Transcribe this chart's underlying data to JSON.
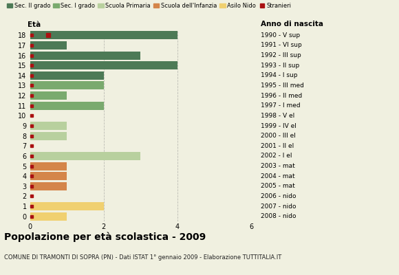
{
  "ages": [
    18,
    17,
    16,
    15,
    14,
    13,
    12,
    11,
    10,
    9,
    8,
    7,
    6,
    5,
    4,
    3,
    2,
    1,
    0
  ],
  "anni_nascita": [
    "1990 - V sup",
    "1991 - VI sup",
    "1992 - III sup",
    "1993 - II sup",
    "1994 - I sup",
    "1995 - III med",
    "1996 - II med",
    "1997 - I med",
    "1998 - V el",
    "1999 - IV el",
    "2000 - III el",
    "2001 - II el",
    "2002 - I el",
    "2003 - mat",
    "2004 - mat",
    "2005 - mat",
    "2006 - nido",
    "2007 - nido",
    "2008 - nido"
  ],
  "bar_values": [
    4,
    1,
    3,
    4,
    2,
    2,
    1,
    2,
    0,
    1,
    1,
    0,
    3,
    1,
    1,
    1,
    0,
    2,
    1
  ],
  "stranieri_pos": [
    0.5,
    0.05,
    0.05,
    0.05,
    0.05,
    0.05,
    0.05,
    0.05,
    0.05,
    0.05,
    0.05,
    0.05,
    0.05,
    0.05,
    0.05,
    0.05,
    0.05,
    0.05,
    0.05
  ],
  "bar_colors": {
    "sec_II": "#4d7a56",
    "sec_I": "#7aaa6e",
    "primaria": "#b8d09e",
    "infanzia": "#d4854a",
    "nido": "#f0d070",
    "stranieri": "#aa1111"
  },
  "age_to_school": {
    "18": "sec_II",
    "17": "sec_II",
    "16": "sec_II",
    "15": "sec_II",
    "14": "sec_II",
    "13": "sec_I",
    "12": "sec_I",
    "11": "sec_I",
    "10": "primaria",
    "9": "primaria",
    "8": "primaria",
    "7": "primaria",
    "6": "primaria",
    "5": "infanzia",
    "4": "infanzia",
    "3": "infanzia",
    "2": "nido",
    "1": "nido",
    "0": "nido"
  },
  "legend_labels": [
    "Sec. II grado",
    "Sec. I grado",
    "Scuola Primaria",
    "Scuola dell'Infanzia",
    "Asilo Nido",
    "Stranieri"
  ],
  "legend_colors": [
    "#4d7a56",
    "#7aaa6e",
    "#b8d09e",
    "#d4854a",
    "#f0d070",
    "#aa1111"
  ],
  "title": "Popolazione per età scolastica - 2009",
  "subtitle": "COMUNE DI TRAMONTI DI SOPRA (PN) - Dati ISTAT 1° gennaio 2009 - Elaborazione TUTTITALIA.IT",
  "xlabel_left": "Età",
  "xlabel_right": "Anno di nascita",
  "xlim": [
    0,
    6
  ],
  "xticks": [
    0,
    2,
    4,
    6
  ],
  "background_color": "#f0f0e0",
  "grid_color": "#888888"
}
